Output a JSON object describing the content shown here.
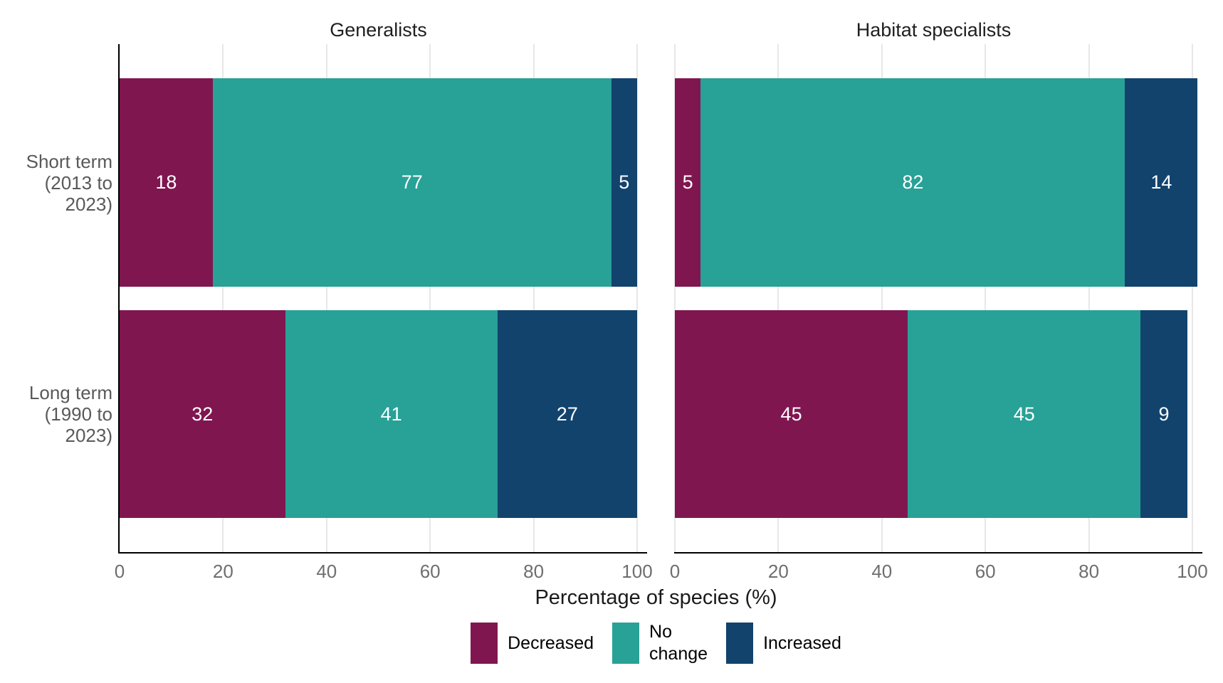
{
  "chart_data": {
    "type": "bar",
    "orientation": "horizontal",
    "stacked": true,
    "xlim": [
      0,
      100
    ],
    "x_ticks": [
      0,
      20,
      40,
      60,
      80,
      100
    ],
    "xlabel": "Percentage of species (%)",
    "grid": "vertical major gridlines every 20, light gray",
    "legend_position": "bottom",
    "categories": [
      "Short term (2013 to 2023)",
      "Long term (1990 to 2023)"
    ],
    "category_label_lines": [
      [
        "Short term",
        "(2013 to",
        "2023)"
      ],
      [
        "Long term",
        "(1990 to",
        "2023)"
      ]
    ],
    "series_names": [
      "Decreased",
      "No change",
      "Increased"
    ],
    "panels": [
      {
        "title": "Generalists",
        "series": [
          {
            "name": "Decreased",
            "values": [
              18,
              32
            ]
          },
          {
            "name": "No change",
            "values": [
              77,
              41
            ]
          },
          {
            "name": "Increased",
            "values": [
              5,
              27
            ]
          }
        ]
      },
      {
        "title": "Habitat specialists",
        "series": [
          {
            "name": "Decreased",
            "values": [
              5,
              45
            ]
          },
          {
            "name": "No change",
            "values": [
              82,
              45
            ]
          },
          {
            "name": "Increased",
            "values": [
              14,
              9
            ]
          }
        ]
      }
    ],
    "legend": [
      {
        "name": "Decreased",
        "label": "Decreased",
        "color": "#801650"
      },
      {
        "name": "No change",
        "label": "No\nchange",
        "color": "#28A197"
      },
      {
        "name": "Increased",
        "label": "Increased",
        "color": "#12436D"
      }
    ],
    "colors": {
      "decreased": "#801650",
      "no_change": "#28A197",
      "increased": "#12436D",
      "bar_value_label": "#ffffff",
      "gridline": "#e7e7e7",
      "axis_line": "#000000",
      "tick_text": "#6e6e6e",
      "category_text": "#595959",
      "title_text": "#1f1f1f"
    }
  }
}
